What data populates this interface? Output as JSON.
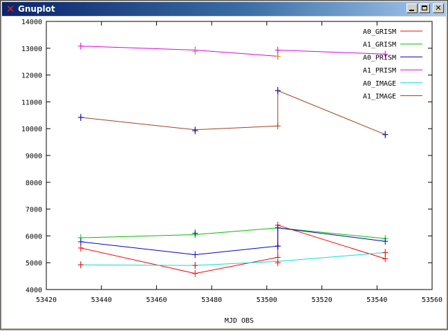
{
  "window": {
    "title": "Gnuplot",
    "app_icon": "x11-icon",
    "buttons": {
      "minimize": "minimize-icon",
      "maximize": "maximize-icon",
      "close": "close-icon"
    }
  },
  "chart_data": {
    "type": "line",
    "title": "",
    "xlabel": "MJD OBS",
    "ylabel": "",
    "xlim": [
      53420,
      53560
    ],
    "ylim": [
      4000,
      14000
    ],
    "xticks": [
      53420,
      53440,
      53460,
      53480,
      53500,
      53520,
      53540,
      53560
    ],
    "yticks": [
      4000,
      5000,
      6000,
      7000,
      8000,
      9000,
      10000,
      11000,
      12000,
      13000,
      14000
    ],
    "grid": false,
    "legend_position": "top-right",
    "point_marker": "+",
    "series": [
      {
        "name": "A0_GRISM",
        "color": "#ff0000",
        "points": [
          [
            53432.5,
            5550
          ],
          [
            53474,
            4600
          ],
          [
            53504,
            5200
          ],
          [
            53504,
            6400
          ],
          [
            53543,
            5150
          ]
        ]
      },
      {
        "name": "A1_GRISM",
        "color": "#00c000",
        "points": [
          [
            53432.5,
            5930
          ],
          [
            53474,
            6050
          ],
          [
            53504,
            6300
          ],
          [
            53543,
            5900
          ]
        ]
      },
      {
        "name": "A0_PRISM",
        "color": "#0000c0",
        "points": [
          [
            53432.5,
            5780
          ],
          [
            53474,
            5300
          ],
          [
            53504,
            5620
          ],
          [
            53504,
            6300
          ],
          [
            53543,
            5800
          ]
        ]
      },
      {
        "name": "A1_PRISM",
        "color": "#e000e0",
        "points": [
          [
            53432.5,
            13080
          ],
          [
            53474,
            12930
          ],
          [
            53504,
            12700
          ],
          [
            53504,
            12930
          ],
          [
            53543,
            12780
          ]
        ]
      },
      {
        "name": "A0_IMAGE",
        "color": "#00e0e0",
        "points": [
          [
            53432.5,
            4920
          ],
          [
            53474,
            4900
          ],
          [
            53504,
            5050
          ],
          [
            53543,
            5380
          ]
        ]
      },
      {
        "name": "A1_IMAGE",
        "color": "#a04020",
        "points": [
          [
            53432.5,
            10420
          ],
          [
            53474,
            9960
          ],
          [
            53504,
            10100
          ],
          [
            53504,
            11420
          ],
          [
            53543,
            9780
          ]
        ]
      }
    ],
    "extra_markers": [
      {
        "color": "#0000c0",
        "points": [
          [
            53474,
            9920
          ],
          [
            53543,
            9780
          ],
          [
            53504,
            11420
          ],
          [
            53432.5,
            10420
          ]
        ]
      },
      {
        "color": "#c0a000",
        "points": [
          [
            53474,
            12880
          ],
          [
            53504,
            12700
          ]
        ]
      },
      {
        "color": "#ff0000",
        "points": [
          [
            53432.5,
            4920
          ],
          [
            53474,
            4900
          ],
          [
            53504,
            5000
          ],
          [
            53543,
            5380
          ]
        ]
      },
      {
        "color": "#0000c0",
        "points": [
          [
            53474,
            6100
          ],
          [
            53504,
            5620
          ]
        ]
      }
    ]
  }
}
